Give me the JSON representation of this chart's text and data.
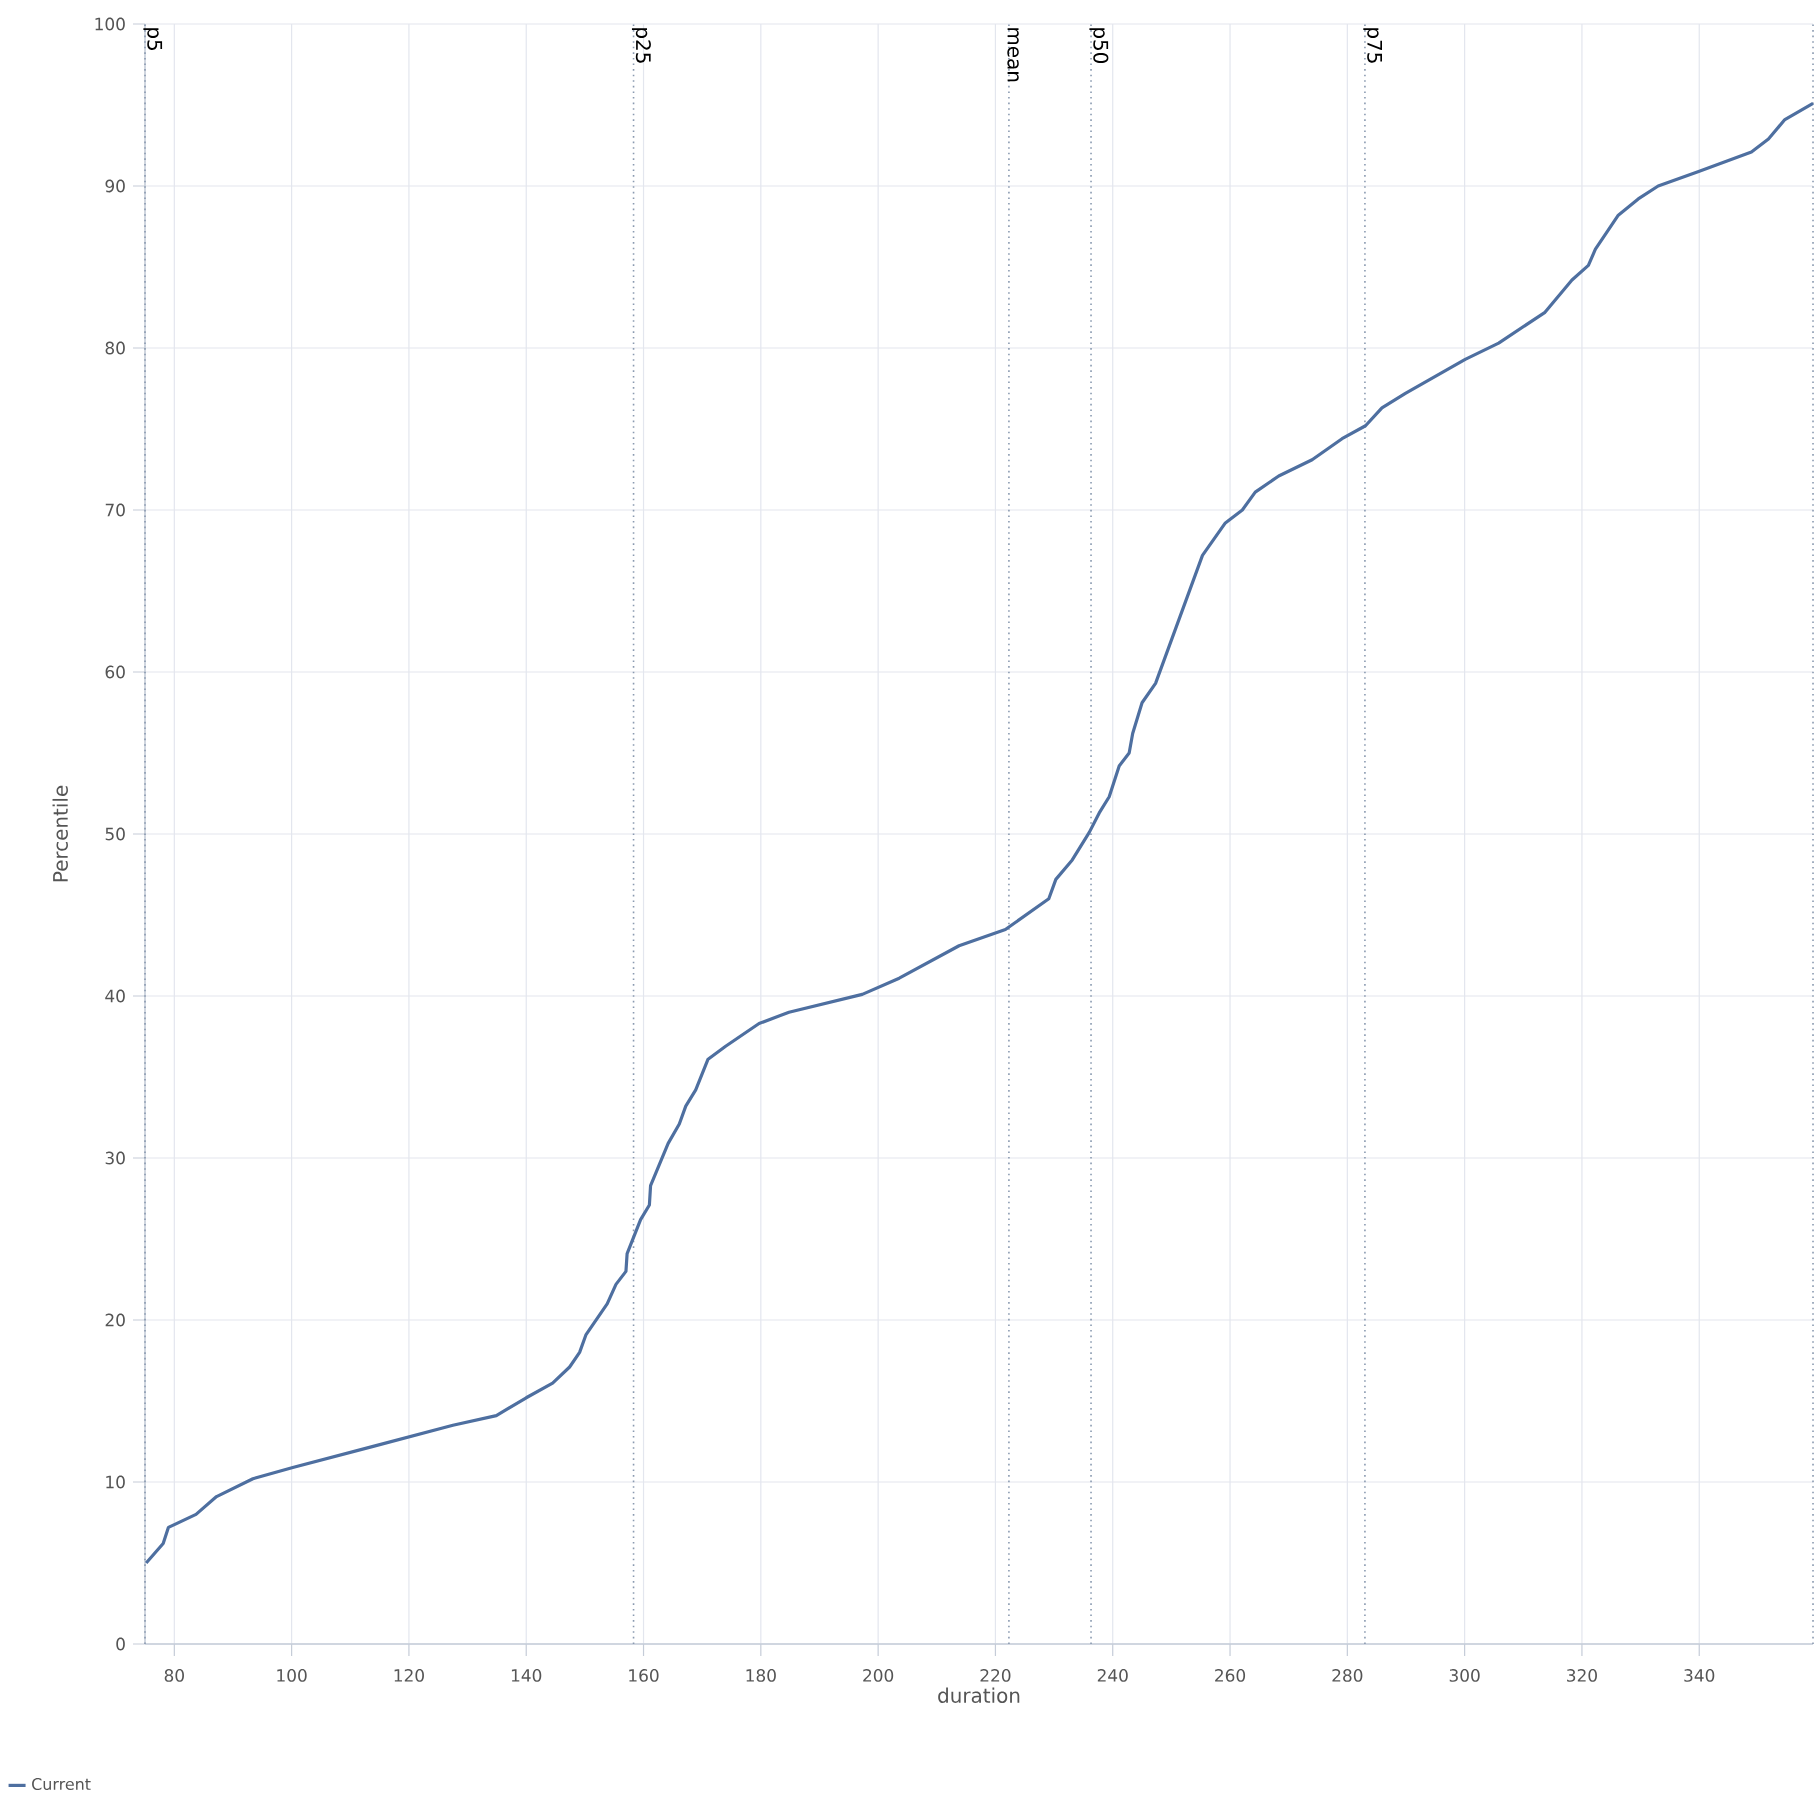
{
  "chart_data": {
    "type": "line",
    "xlabel": "duration",
    "ylabel": "Percentile",
    "x": [
      75.2,
      78.1,
      79,
      83.7,
      87.2,
      93.4,
      100.2,
      113.9,
      127.5,
      134.9,
      140,
      144.5,
      147.4,
      149.1,
      150.2,
      153.8,
      155.3,
      157,
      157.2,
      159.5,
      161,
      161.2,
      164.2,
      166.1,
      167.2,
      168.9,
      171,
      174,
      179.7,
      184.8,
      197.3,
      203.6,
      213.8,
      221.7,
      229.1,
      230.3,
      233.1,
      236,
      237.7,
      239.4,
      241.1,
      242.8,
      243.4,
      245,
      247.3,
      255.3,
      259.2,
      262.1,
      264.3,
      268.3,
      274,
      279.1,
      283.1,
      285.9,
      289.9,
      300.1,
      305.8,
      313.7,
      318.3,
      321.1,
      322.3,
      326.2,
      329.6,
      333,
      339.9,
      348.9,
      351.8,
      354.6,
      359.4
    ],
    "series": [
      {
        "name": "Current",
        "color": "#4e6fa0",
        "values": [
          5,
          6.2,
          7.2,
          8,
          9.1,
          10.2,
          10.9,
          12.2,
          13.5,
          14.1,
          15.2,
          16.1,
          17.1,
          18,
          19.1,
          21,
          22.2,
          23,
          24.1,
          26.2,
          27.1,
          28.3,
          30.9,
          32.1,
          33.2,
          34.2,
          36.1,
          36.9,
          38.3,
          39,
          40.1,
          41.1,
          43.1,
          44.1,
          46,
          47.2,
          48.4,
          50.1,
          51.3,
          52.3,
          54.2,
          55,
          56.2,
          58.1,
          59.3,
          67.2,
          69.2,
          70,
          71.1,
          72.1,
          73.1,
          74.4,
          75.2,
          76.3,
          77.2,
          79.3,
          80.3,
          82.2,
          84.2,
          85.1,
          86.1,
          88.2,
          89.2,
          90,
          90.9,
          92.1,
          92.9,
          94.1,
          95.1
        ]
      }
    ],
    "xlim": [
      75,
      359.4
    ],
    "ylim": [
      0,
      100
    ],
    "xticks": [
      80,
      100,
      120,
      140,
      160,
      180,
      200,
      220,
      240,
      260,
      280,
      300,
      320,
      340
    ],
    "yticks": [
      0,
      10,
      20,
      30,
      40,
      50,
      60,
      70,
      80,
      90,
      100
    ],
    "ref_lines": [
      {
        "axis": "x",
        "value": 75,
        "label": "p5",
        "color": "#8a9ab0",
        "line_style": "dotted"
      },
      {
        "axis": "x",
        "value": 158.3,
        "label": "p25",
        "color": "#8a9ab0",
        "line_style": "dotted"
      },
      {
        "axis": "x",
        "value": 222.3,
        "label": "mean",
        "color": "#8a9ab0",
        "line_style": "dotted"
      },
      {
        "axis": "x",
        "value": 236.3,
        "label": "p50",
        "color": "#8a9ab0",
        "line_style": "dotted"
      },
      {
        "axis": "x",
        "value": 283,
        "label": "p75",
        "color": "#8a9ab0",
        "line_style": "dotted"
      },
      {
        "axis": "x",
        "value": 359.4,
        "color": "#8a9ab0",
        "line_style": "dotted"
      }
    ],
    "grid": true,
    "legend": "bottom left",
    "marker": "none",
    "line_style": "solid"
  }
}
